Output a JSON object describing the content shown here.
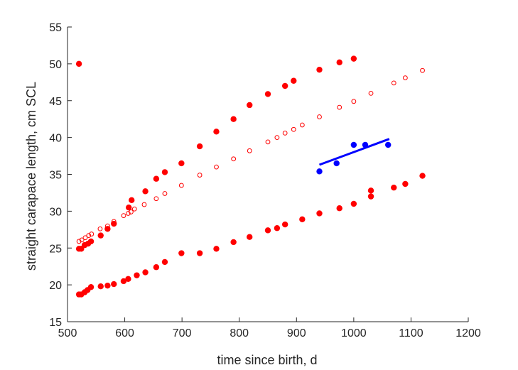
{
  "chart_data": {
    "type": "scatter",
    "title": "",
    "xlabel": "time since birth, d",
    "ylabel": "straight carapace length, cm SCL",
    "xlim": [
      500,
      1200
    ],
    "ylim": [
      15,
      55
    ],
    "xticks": [
      500,
      600,
      700,
      800,
      900,
      1000,
      1100,
      1200
    ],
    "yticks": [
      15,
      20,
      25,
      30,
      35,
      40,
      45,
      50,
      55
    ],
    "grid": false,
    "legend": "none",
    "series": [
      {
        "marker": "filled-circle",
        "color": "#ff0000",
        "points": [
          [
            520,
            50.0
          ],
          [
            975,
            50.2
          ],
          [
            1000,
            50.7
          ],
          [
            940,
            49.2
          ],
          [
            895,
            47.7
          ],
          [
            880,
            47.0
          ],
          [
            850,
            45.9
          ],
          [
            818,
            44.4
          ],
          [
            790,
            42.5
          ],
          [
            760,
            40.8
          ],
          [
            731,
            38.8
          ],
          [
            699,
            36.5
          ],
          [
            670,
            35.3
          ],
          [
            655,
            34.4
          ],
          [
            636,
            32.7
          ],
          [
            612,
            31.5
          ],
          [
            607,
            30.5
          ],
          [
            581,
            28.3
          ],
          [
            570,
            27.6
          ],
          [
            558,
            26.7
          ],
          [
            541,
            25.9
          ],
          [
            536,
            25.6
          ],
          [
            530,
            25.4
          ],
          [
            524,
            24.9
          ],
          [
            520,
            24.9
          ]
        ]
      },
      {
        "marker": "open-circle",
        "color": "#ff0000",
        "points": [
          [
            520,
            25.9
          ],
          [
            525,
            26.1
          ],
          [
            531,
            26.4
          ],
          [
            537,
            26.7
          ],
          [
            542,
            26.9
          ],
          [
            557,
            27.6
          ],
          [
            570,
            28.0
          ],
          [
            581,
            28.6
          ],
          [
            598,
            29.4
          ],
          [
            606,
            29.7
          ],
          [
            611,
            29.9
          ],
          [
            617,
            30.3
          ],
          [
            634,
            30.9
          ],
          [
            655,
            31.7
          ],
          [
            670,
            32.4
          ],
          [
            699,
            33.5
          ],
          [
            731,
            34.9
          ],
          [
            760,
            36.0
          ],
          [
            790,
            37.1
          ],
          [
            818,
            38.2
          ],
          [
            850,
            39.4
          ],
          [
            866,
            40.0
          ],
          [
            880,
            40.6
          ],
          [
            895,
            41.1
          ],
          [
            910,
            41.7
          ],
          [
            940,
            42.8
          ],
          [
            975,
            44.1
          ],
          [
            1000,
            44.9
          ],
          [
            1030,
            46.0
          ],
          [
            1070,
            47.4
          ],
          [
            1090,
            48.1
          ],
          [
            1120,
            49.1
          ]
        ]
      },
      {
        "marker": "filled-circle",
        "color": "#ff0000",
        "points": [
          [
            520,
            18.7
          ],
          [
            524,
            18.7
          ],
          [
            530,
            19.0
          ],
          [
            535,
            19.3
          ],
          [
            541,
            19.7
          ],
          [
            558,
            19.8
          ],
          [
            570,
            19.9
          ],
          [
            581,
            20.1
          ],
          [
            598,
            20.5
          ],
          [
            606,
            20.8
          ],
          [
            621,
            21.3
          ],
          [
            636,
            21.7
          ],
          [
            655,
            22.4
          ],
          [
            670,
            23.1
          ],
          [
            699,
            24.3
          ],
          [
            731,
            24.3
          ],
          [
            760,
            24.9
          ],
          [
            790,
            25.8
          ],
          [
            818,
            26.5
          ],
          [
            850,
            27.4
          ],
          [
            866,
            27.7
          ],
          [
            880,
            28.2
          ],
          [
            910,
            28.9
          ],
          [
            940,
            29.7
          ],
          [
            975,
            30.4
          ],
          [
            1000,
            31.0
          ],
          [
            1030,
            32.0
          ],
          [
            1030,
            32.8
          ],
          [
            1070,
            33.2
          ],
          [
            1090,
            33.7
          ],
          [
            1120,
            34.8
          ]
        ]
      },
      {
        "marker": "filled-circle",
        "color": "#0000ff",
        "points": [
          [
            940,
            35.4
          ],
          [
            970,
            36.5
          ],
          [
            1000,
            39.0
          ],
          [
            1020,
            39.0
          ],
          [
            1060,
            39.0
          ]
        ]
      }
    ],
    "lines": [
      {
        "color": "#0000ff",
        "points": [
          [
            940,
            36.3
          ],
          [
            1062,
            39.8
          ]
        ]
      }
    ]
  }
}
